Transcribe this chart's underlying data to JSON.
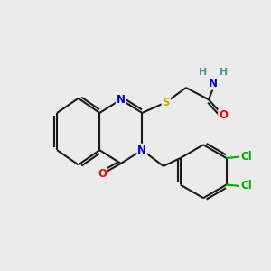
{
  "background_color": "#ebebeb",
  "bond_color": "#1a1a1a",
  "bond_width": 1.5,
  "atom_colors": {
    "N": "#0000cc",
    "O": "#ff0000",
    "S": "#ccaa00",
    "Cl": "#00aa00",
    "C": "#1a1a1a",
    "H": "#4a9a9a"
  },
  "font_size": 8.5,
  "fig_size": [
    3.0,
    3.0
  ],
  "dpi": 100
}
